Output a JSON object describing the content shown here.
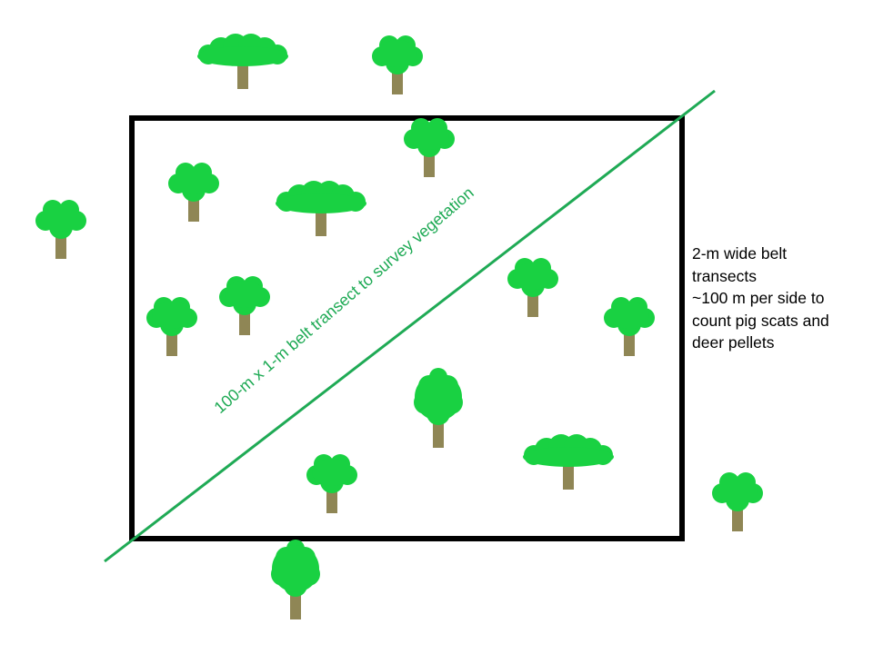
{
  "colors": {
    "background": "#ffffff",
    "plot_outline": "#000000",
    "transect_line": "#1faa55",
    "canopy": "#19d142",
    "trunk": "#8f8655"
  },
  "icons": {
    "tree": "tree-icon"
  },
  "diagonal_label": "100-m x 1-m belt transect to survey vegetation",
  "side_note": {
    "lines": [
      "2-m wide belt",
      "transects",
      "~100 m per side to",
      "count pig scats and",
      "deer pellets"
    ]
  }
}
